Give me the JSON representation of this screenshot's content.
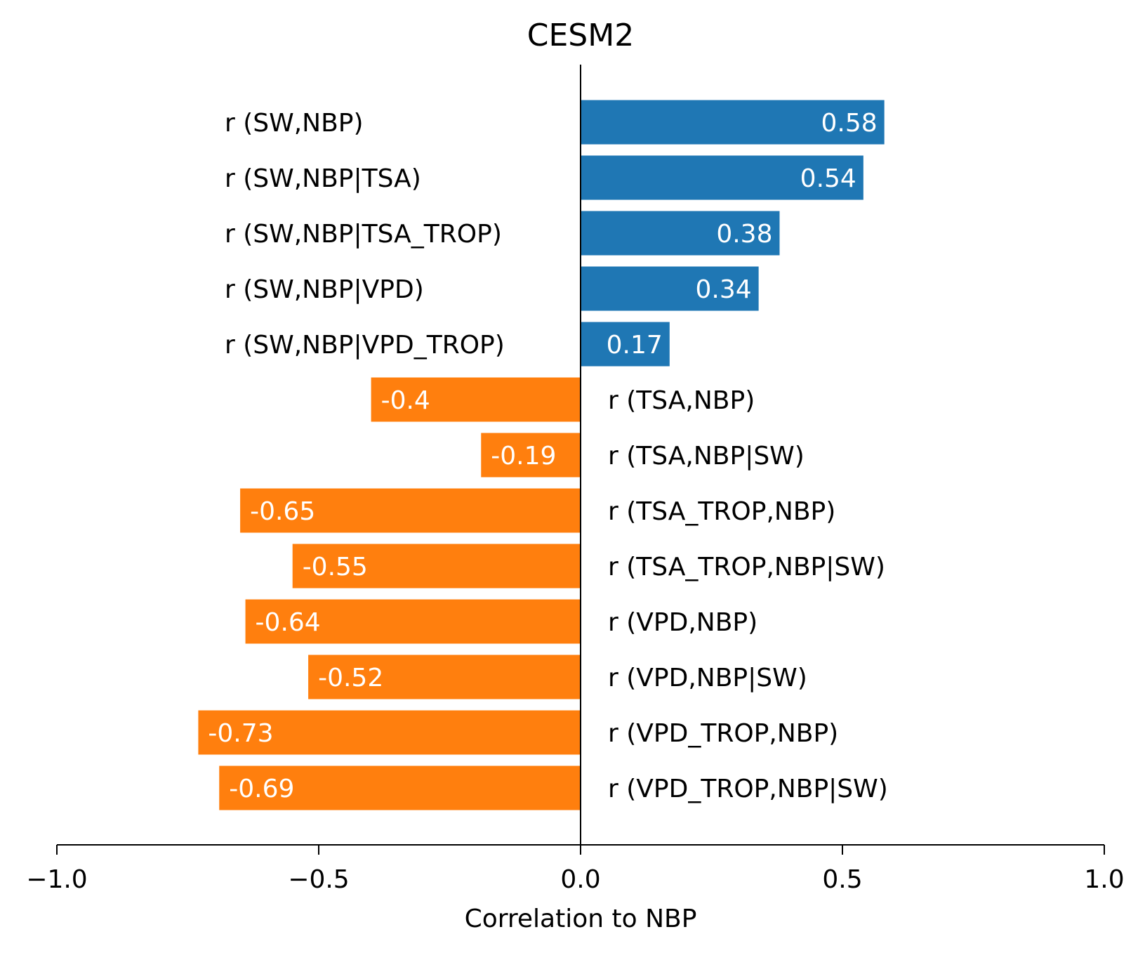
{
  "chart_data": {
    "type": "bar",
    "orientation": "horizontal",
    "title": "CESM2",
    "xlabel": "Correlation to NBP",
    "ylabel": "",
    "xlim": [
      -1.0,
      1.0
    ],
    "xticks": [
      -1.0,
      -0.5,
      0.0,
      0.5,
      1.0
    ],
    "xtick_labels": [
      "−1.0",
      "−0.5",
      "0.0",
      "0.5",
      "1.0"
    ],
    "grid": false,
    "categories": [
      "r (SW,NBP)",
      "r (SW,NBP|TSA)",
      "r (SW,NBP|TSA_TROP)",
      "r (SW,NBP|VPD)",
      "r (SW,NBP|VPD_TROP)",
      "r (TSA,NBP)",
      "r (TSA,NBP|SW)",
      "r (TSA_TROP,NBP)",
      "r (TSA_TROP,NBP|SW)",
      "r (VPD,NBP)",
      "r (VPD,NBP|SW)",
      "r (VPD_TROP,NBP)",
      "r (VPD_TROP,NBP|SW)"
    ],
    "values": [
      0.58,
      0.54,
      0.38,
      0.34,
      0.17,
      -0.4,
      -0.19,
      -0.65,
      -0.55,
      -0.64,
      -0.52,
      -0.73,
      -0.69
    ],
    "value_labels": [
      "0.58",
      "0.54",
      "0.38",
      "0.34",
      "0.17",
      "-0.4",
      "-0.19",
      "-0.65",
      "-0.55",
      "-0.64",
      "-0.52",
      "-0.73",
      "-0.69"
    ],
    "colors": {
      "positive": "#1f77b4",
      "negative": "#ff7f0e"
    }
  }
}
